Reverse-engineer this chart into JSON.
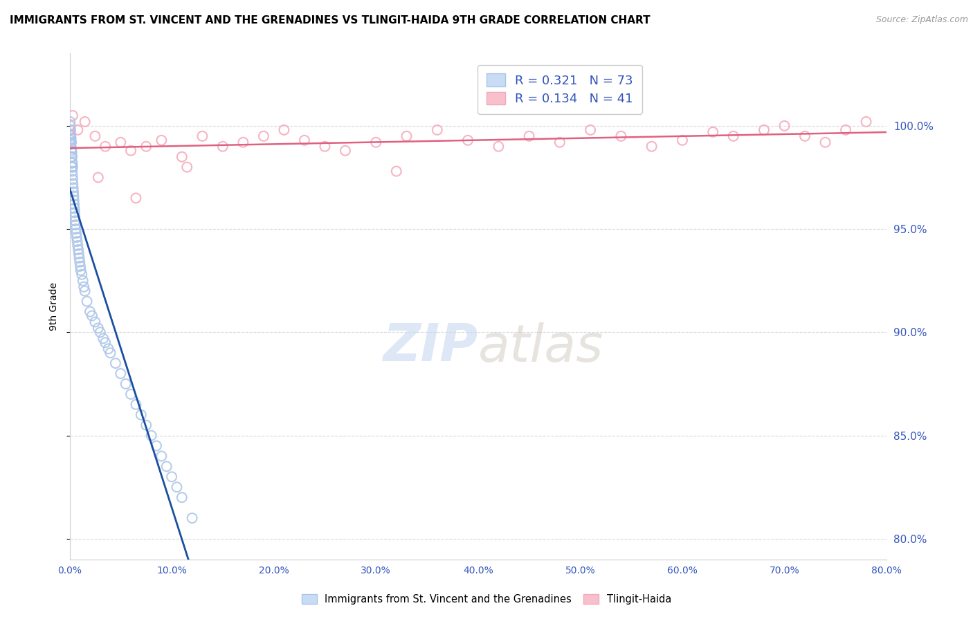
{
  "title": "IMMIGRANTS FROM ST. VINCENT AND THE GRENADINES VS TLINGIT-HAIDA 9TH GRADE CORRELATION CHART",
  "source": "Source: ZipAtlas.com",
  "ylabel": "9th Grade",
  "blue_label": "Immigrants from St. Vincent and the Grenadines",
  "pink_label": "Tlingit-Haida",
  "blue_R": 0.321,
  "blue_N": 73,
  "pink_R": 0.134,
  "pink_N": 41,
  "blue_color": "#aac4e8",
  "pink_color": "#f4a8b8",
  "blue_line_color": "#1a4fa0",
  "pink_line_color": "#e06080",
  "xlim": [
    0.0,
    80.0
  ],
  "ylim": [
    79.0,
    103.5
  ],
  "yticks": [
    80.0,
    85.0,
    90.0,
    95.0,
    100.0
  ],
  "xticks": [
    0.0,
    10.0,
    20.0,
    30.0,
    40.0,
    50.0,
    60.0,
    70.0,
    80.0
  ],
  "grid_color": "#d8d8d8",
  "background_color": "#ffffff",
  "blue_x": [
    0.05,
    0.05,
    0.08,
    0.08,
    0.1,
    0.1,
    0.12,
    0.12,
    0.15,
    0.15,
    0.18,
    0.18,
    0.2,
    0.2,
    0.22,
    0.22,
    0.25,
    0.25,
    0.28,
    0.28,
    0.3,
    0.3,
    0.32,
    0.35,
    0.38,
    0.4,
    0.42,
    0.45,
    0.48,
    0.5,
    0.52,
    0.55,
    0.58,
    0.6,
    0.65,
    0.7,
    0.75,
    0.8,
    0.85,
    0.9,
    0.95,
    1.0,
    1.05,
    1.1,
    1.2,
    1.3,
    1.4,
    1.5,
    1.7,
    2.0,
    2.2,
    2.5,
    2.8,
    3.0,
    3.3,
    3.5,
    3.8,
    4.0,
    4.5,
    5.0,
    5.5,
    6.0,
    6.5,
    7.0,
    7.5,
    8.0,
    8.5,
    9.0,
    9.5,
    10.0,
    10.5,
    11.0,
    12.0
  ],
  "blue_y": [
    99.8,
    100.2,
    99.5,
    100.0,
    99.3,
    99.8,
    99.1,
    99.6,
    98.8,
    99.4,
    98.5,
    99.2,
    98.2,
    98.9,
    98.0,
    98.7,
    97.8,
    98.5,
    97.6,
    98.2,
    97.4,
    98.0,
    97.2,
    97.0,
    96.8,
    96.6,
    96.4,
    96.2,
    96.0,
    95.8,
    95.6,
    95.4,
    95.2,
    95.0,
    94.8,
    94.6,
    94.4,
    94.2,
    94.0,
    93.8,
    93.6,
    93.4,
    93.2,
    93.0,
    92.8,
    92.5,
    92.2,
    92.0,
    91.5,
    91.0,
    90.8,
    90.5,
    90.2,
    90.0,
    89.7,
    89.5,
    89.2,
    89.0,
    88.5,
    88.0,
    87.5,
    87.0,
    86.5,
    86.0,
    85.5,
    85.0,
    84.5,
    84.0,
    83.5,
    83.0,
    82.5,
    82.0,
    81.0
  ],
  "pink_x": [
    0.3,
    0.8,
    1.5,
    2.5,
    3.5,
    5.0,
    6.0,
    7.5,
    9.0,
    11.0,
    13.0,
    15.0,
    17.0,
    19.0,
    21.0,
    23.0,
    25.0,
    27.0,
    30.0,
    33.0,
    36.0,
    39.0,
    42.0,
    45.0,
    48.0,
    51.0,
    54.0,
    57.0,
    60.0,
    63.0,
    65.0,
    68.0,
    70.0,
    72.0,
    74.0,
    76.0,
    78.0,
    6.5,
    2.8,
    11.5,
    32.0
  ],
  "pink_y": [
    100.5,
    99.8,
    100.2,
    99.5,
    99.0,
    99.2,
    98.8,
    99.0,
    99.3,
    98.5,
    99.5,
    99.0,
    99.2,
    99.5,
    99.8,
    99.3,
    99.0,
    98.8,
    99.2,
    99.5,
    99.8,
    99.3,
    99.0,
    99.5,
    99.2,
    99.8,
    99.5,
    99.0,
    99.3,
    99.7,
    99.5,
    99.8,
    100.0,
    99.5,
    99.2,
    99.8,
    100.2,
    96.5,
    97.5,
    98.0,
    97.8
  ]
}
